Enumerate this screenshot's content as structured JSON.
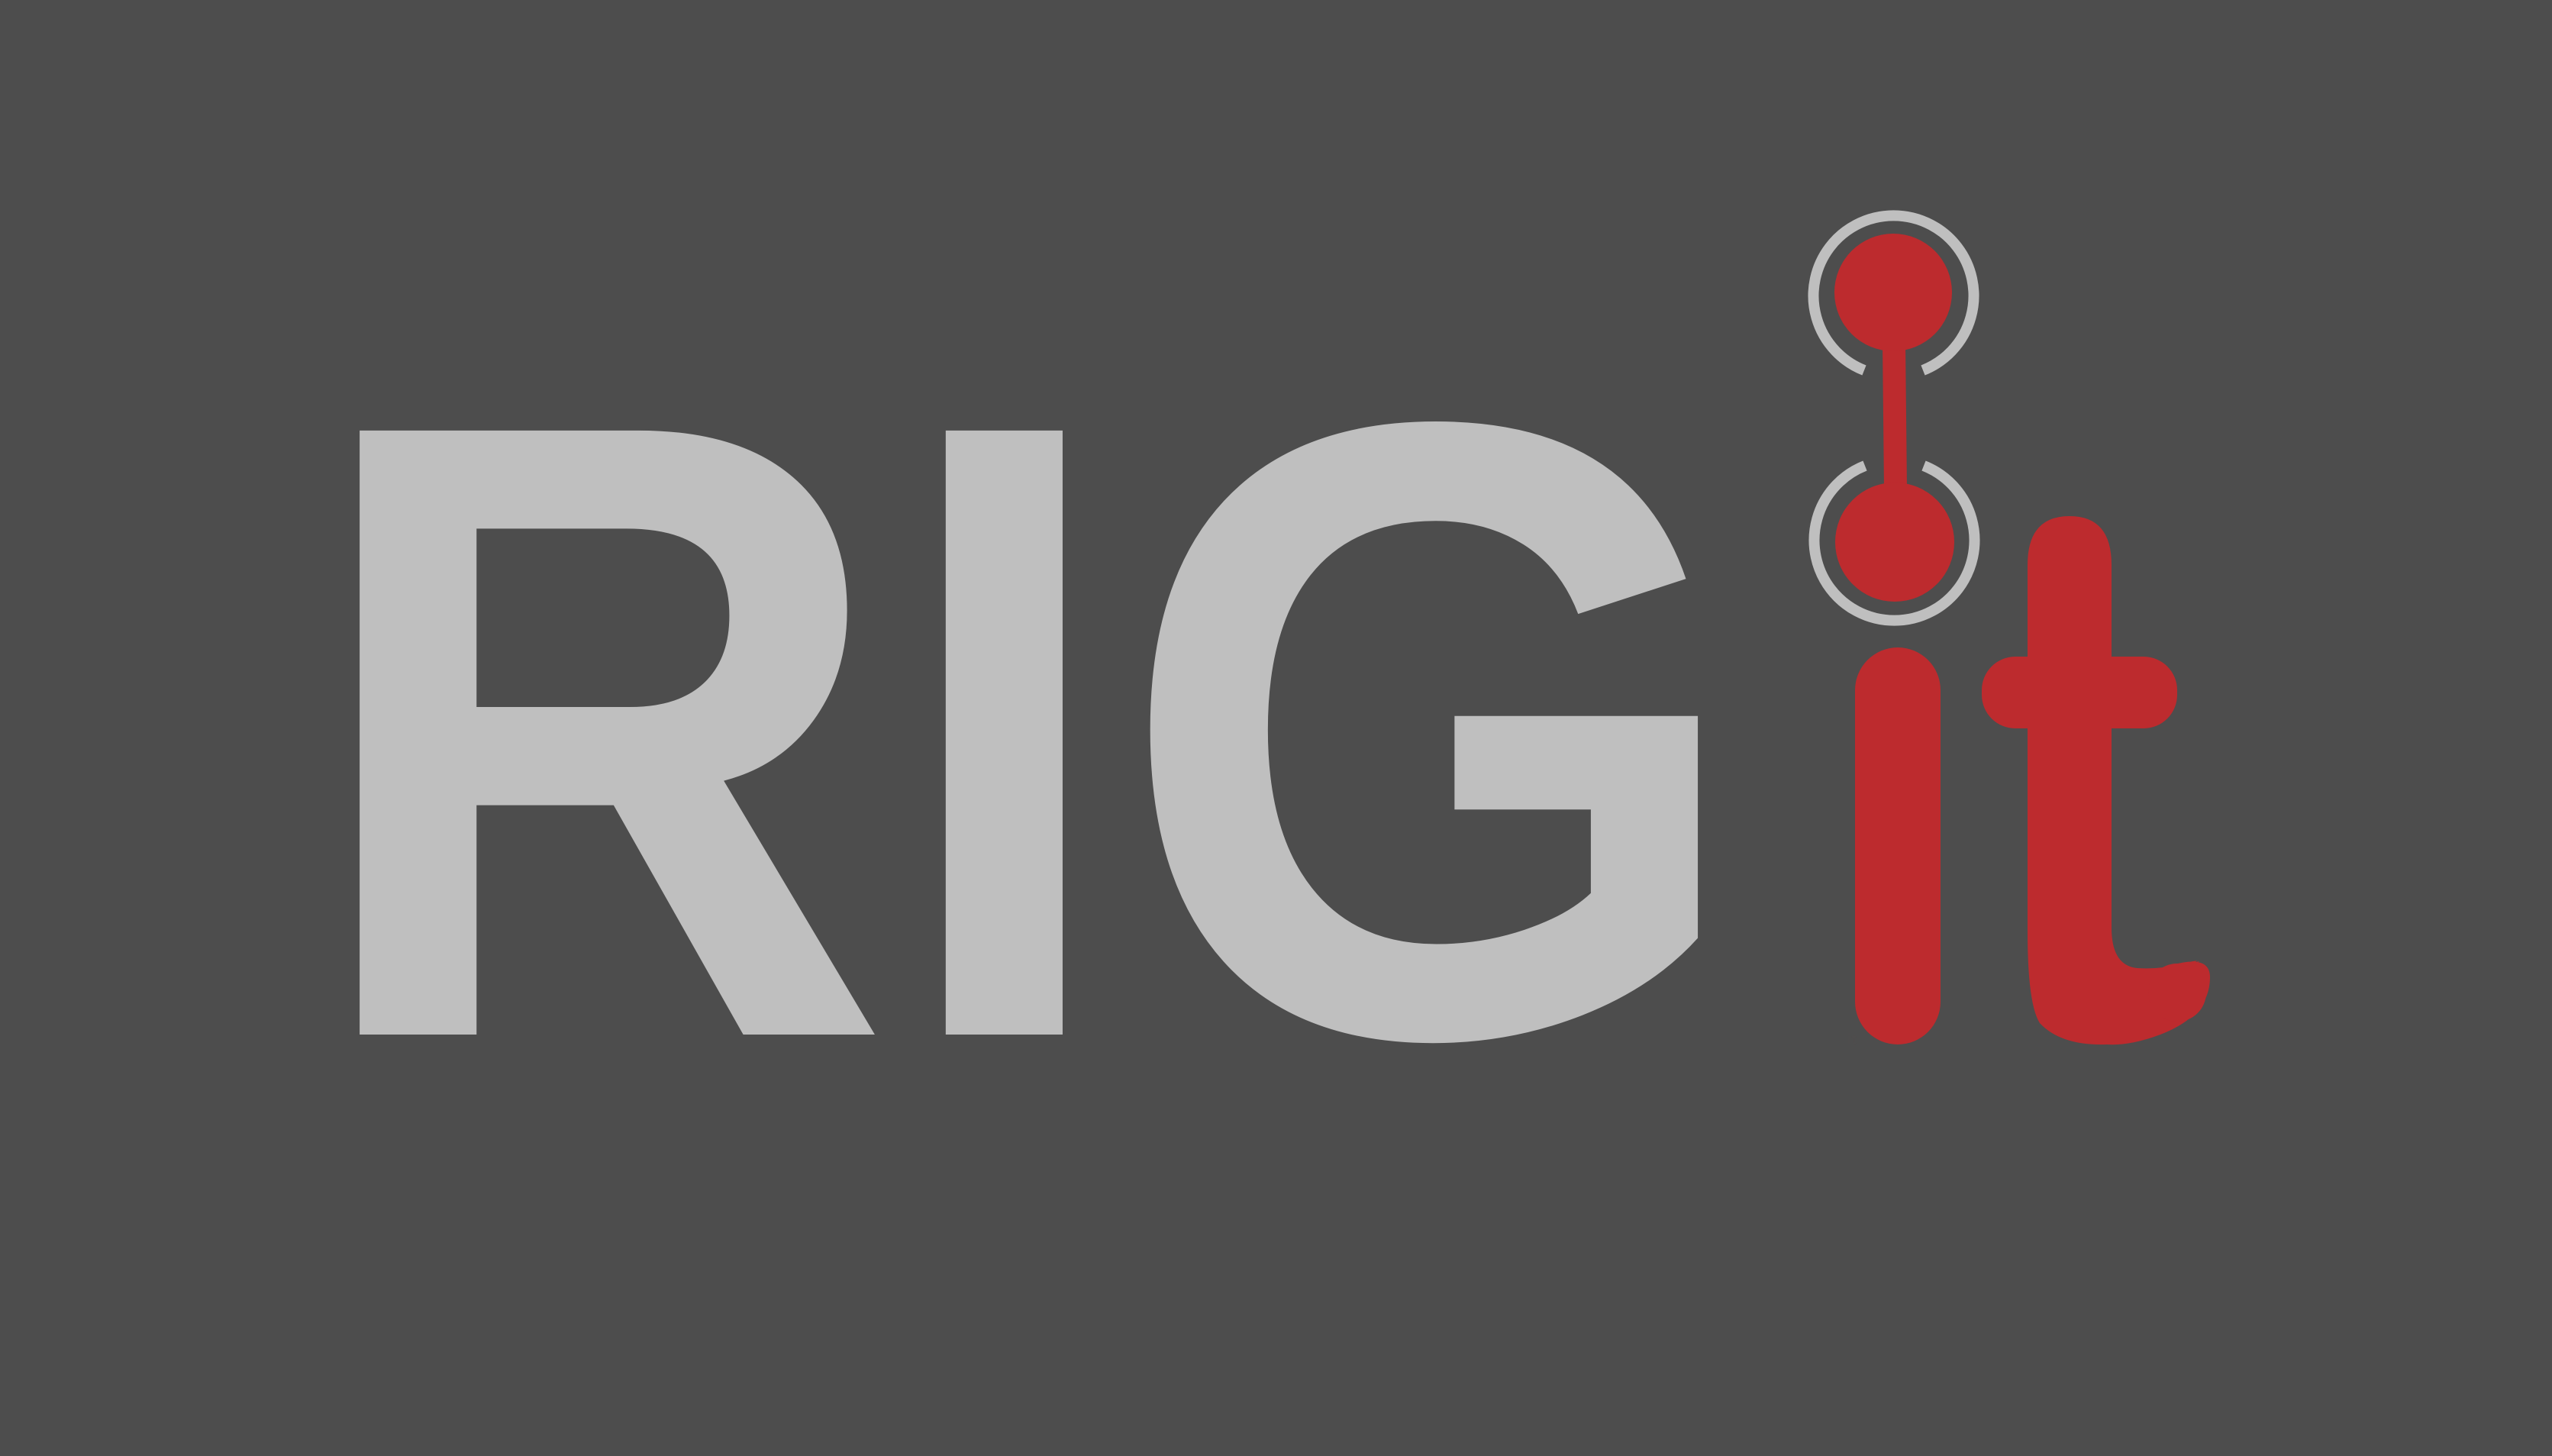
{
  "logo": {
    "text_main": "RIG",
    "text_accent": "it",
    "colors": {
      "background": "#4d4d4d",
      "main_text": "#bfbfbf",
      "accent": "#bd2b2e",
      "ring": "#bfbfbf"
    },
    "icon": "joint-chain-icon"
  }
}
